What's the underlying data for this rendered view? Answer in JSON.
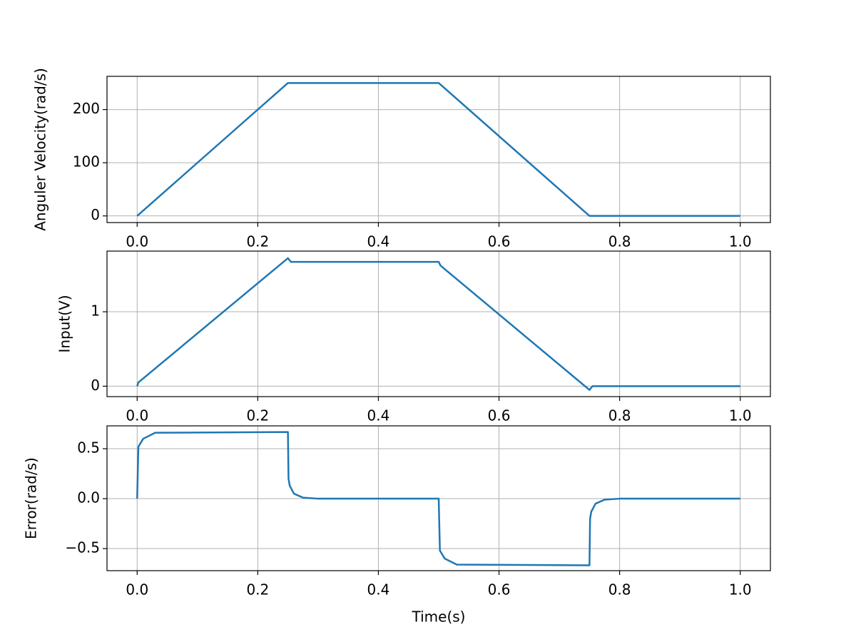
{
  "chart_data": [
    {
      "type": "line",
      "ylabel": "Anguler Velocity(rad/s)",
      "color": "#1f77b4",
      "grid": true,
      "x": [
        0,
        0.25,
        0.5,
        0.75,
        1.0
      ],
      "values": [
        0,
        250,
        250,
        0,
        0
      ],
      "xlim": [
        -0.05,
        1.05
      ],
      "xticks": [
        {
          "value": 0,
          "label": "0.0"
        },
        0.2,
        0.4,
        0.6,
        0.8,
        {
          "value": 1,
          "label": "1.0"
        }
      ],
      "ylim": [
        -12.5,
        262.5
      ],
      "yticks": [
        0,
        100,
        200
      ]
    },
    {
      "type": "line",
      "ylabel": "Input(V)",
      "color": "#1f77b4",
      "grid": true,
      "x": [
        0,
        0.002,
        0.25,
        0.255,
        0.5,
        0.503,
        0.75,
        0.755,
        1.0
      ],
      "values": [
        0,
        0.05,
        1.72,
        1.67,
        1.67,
        1.62,
        -0.05,
        0,
        0
      ],
      "xlim": [
        -0.05,
        1.05
      ],
      "xticks": [
        {
          "value": 0,
          "label": "0.0"
        },
        0.2,
        0.4,
        0.6,
        0.8,
        {
          "value": 1,
          "label": "1.0"
        }
      ],
      "ylim": [
        -0.14,
        1.815
      ],
      "yticks": [
        0,
        1
      ]
    },
    {
      "type": "line",
      "ylabel": "Error(rad/s)",
      "xlabel": "Time(s)",
      "color": "#1f77b4",
      "grid": true,
      "x": [
        0,
        0.002,
        0.01,
        0.03,
        0.25,
        0.251,
        0.253,
        0.26,
        0.275,
        0.3,
        0.5,
        0.502,
        0.51,
        0.53,
        0.75,
        0.751,
        0.753,
        0.76,
        0.775,
        0.8,
        1.0
      ],
      "values": [
        0,
        0.52,
        0.6,
        0.66,
        0.667,
        0.2,
        0.13,
        0.05,
        0.01,
        0,
        0,
        -0.52,
        -0.6,
        -0.66,
        -0.667,
        -0.2,
        -0.13,
        -0.05,
        -0.01,
        0,
        0
      ],
      "xlim": [
        -0.05,
        1.05
      ],
      "xticks": [
        {
          "value": 0,
          "label": "0.0"
        },
        0.2,
        0.4,
        0.6,
        0.8,
        {
          "value": 1,
          "label": "1.0"
        }
      ],
      "ylim": [
        -0.721,
        0.729
      ],
      "yticks": [
        {
          "value": -0.5,
          "label": "−0.5"
        },
        {
          "value": 0,
          "label": "0.0"
        },
        0.5
      ]
    }
  ]
}
